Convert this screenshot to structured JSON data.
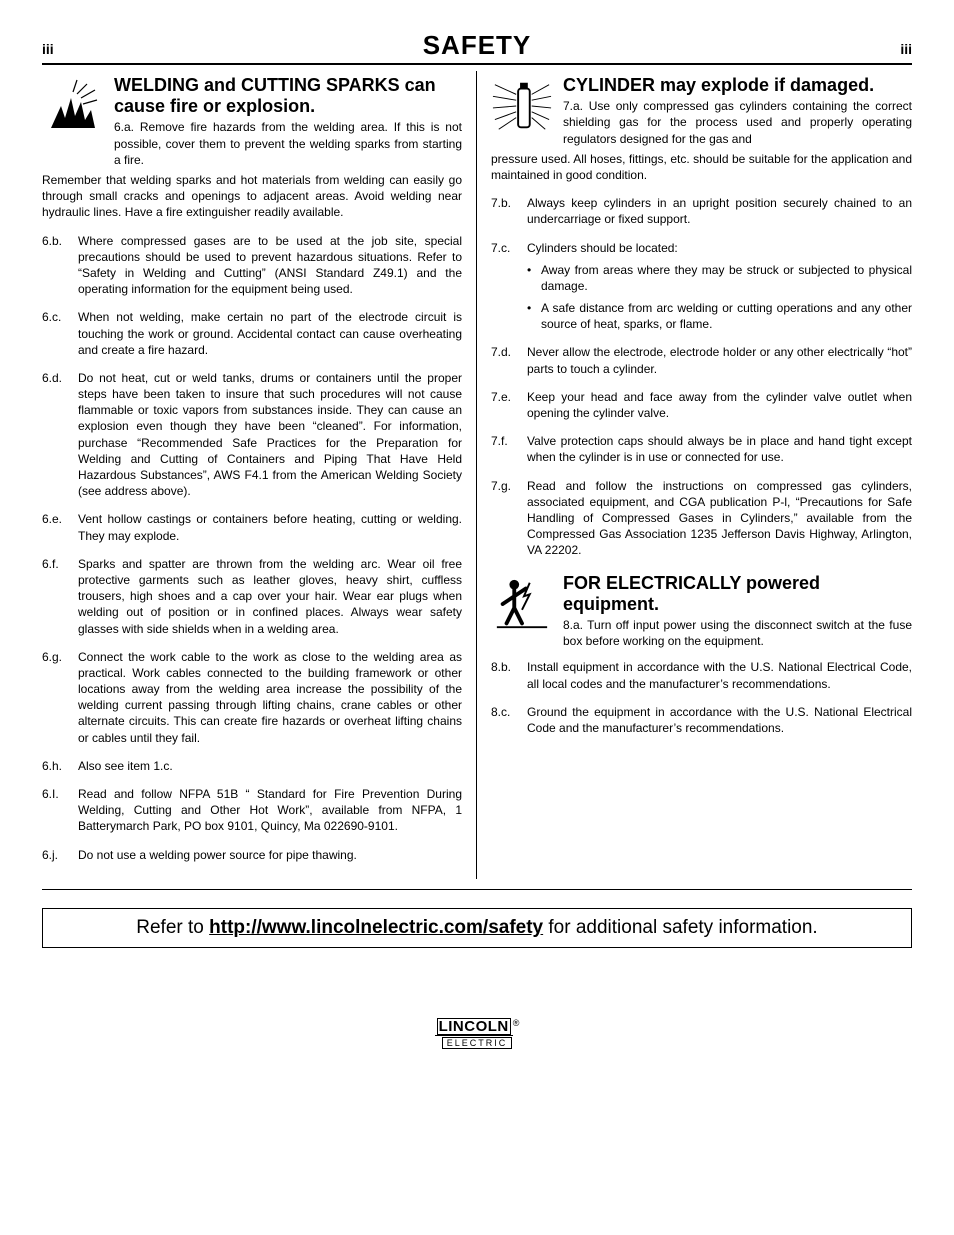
{
  "header": {
    "page_left": "iii",
    "title": "SAFETY",
    "page_right": "iii"
  },
  "left": {
    "title": "WELDING and CUTTING SPARKS can cause fire or explosion.",
    "first_num": "6.a.",
    "first_inline": "Remove fire hazards from the welding area. If this is not possible, cover them to prevent the welding sparks from starting a fire.",
    "first_cont": "Remember that welding sparks and hot materials from welding can easily go through small cracks and openings to adjacent areas. Avoid welding near hydraulic lines. Have a fire extinguisher readily available.",
    "items": [
      {
        "num": "6.b.",
        "txt": "Where compressed gases are to be used at the job site, special precautions should be used to prevent hazardous situations. Refer to “Safety in Welding and Cutting” (ANSI Standard Z49.1) and the operating information for the equipment being used."
      },
      {
        "num": "6.c.",
        "txt": "When not welding, make certain no part of the electrode circuit is touching the work or ground. Accidental contact can cause overheating and create a fire hazard."
      },
      {
        "num": "6.d.",
        "txt": "Do not heat, cut or weld tanks, drums or containers until the proper steps have been taken to insure that such procedures will not cause flammable or toxic vapors from substances inside. They can cause an explosion even though they have been “cleaned”. For information, purchase “Recommended Safe Practices for the Preparation for Welding and Cutting of Containers and Piping That Have Held Hazardous Substances”, AWS F4.1 from the American Welding Society (see address above)."
      },
      {
        "num": "6.e.",
        "txt": "Vent hollow castings or containers before heating, cutting or welding. They may explode."
      },
      {
        "num": "6.f.",
        "txt": "Sparks and spatter are thrown from the welding arc. Wear oil free protective garments such as leather gloves, heavy shirt, cuffless trousers, high shoes and a cap over your hair. Wear ear plugs when welding out of position or in confined places. Always wear safety glasses with side shields when in a welding area."
      },
      {
        "num": "6.g.",
        "txt": "Connect the work cable to the work as close to the welding area as practical. Work cables connected to the building framework or other locations away from the welding area increase the possibility of the welding current passing through lifting chains, crane cables or other alternate circuits. This can create fire hazards or overheat lifting chains or cables until they fail."
      },
      {
        "num": "6.h.",
        "txt": "Also see item 1.c."
      },
      {
        "num": "6.I.",
        "txt": "Read and follow NFPA 51B “ Standard for Fire Prevention During Welding, Cutting and Other Hot Work”, available from NFPA, 1 Batterymarch Park, PO box 9101, Quincy, Ma 022690-9101."
      },
      {
        "num": "6.j.",
        "txt": "Do not use a welding power source for pipe thawing."
      }
    ]
  },
  "rightA": {
    "title": "CYLINDER may explode if damaged.",
    "first_num": "7.a.",
    "first_inline": "Use only compressed gas cylinders containing the correct shielding gas for the process used and properly operating regulators designed for the gas and",
    "first_cont": "pressure used. All hoses, fittings, etc. should be suitable for the application and maintained in good condition.",
    "items": [
      {
        "num": "7.b.",
        "txt": "Always keep cylinders in an upright position securely chained to an undercarriage or fixed support."
      },
      {
        "num": "7.c.",
        "txt": "Cylinders should be located:",
        "subs": [
          "Away from areas where they may be struck or subjected to physical damage.",
          "A safe distance from arc welding or cutting operations and any other source of heat, sparks, or flame."
        ]
      },
      {
        "num": "7.d.",
        "txt": "Never allow the electrode, electrode holder or any other electrically “hot” parts to touch a cylinder."
      },
      {
        "num": "7.e.",
        "txt": "Keep your head and face away from the cylinder valve outlet when opening the cylinder valve."
      },
      {
        "num": "7.f.",
        "txt": "Valve protection caps should always be in place and hand tight except when the cylinder is in use or connected for use."
      },
      {
        "num": "7.g.",
        "txt": "Read and follow the instructions on compressed gas cylinders, associated equipment, and CGA publication P-l, “Precautions for Safe Handling of Compressed Gases in Cylinders,” available from the Compressed Gas Association 1235 Jefferson Davis Highway, Arlington, VA 22202."
      }
    ]
  },
  "rightB": {
    "title": "FOR ELECTRICALLY powered equipment.",
    "first_num": "8.a.",
    "first_inline": "Turn off input power using the disconnect switch at the fuse box before working on the equipment.",
    "items": [
      {
        "num": "8.b.",
        "txt": "Install equipment in accordance with the U.S. National Electrical Code, all local codes and the manufacturer’s recommendations."
      },
      {
        "num": "8.c.",
        "txt": "Ground the equipment in accordance with the U.S. National Electrical Code and the manufacturer’s recommendations."
      }
    ]
  },
  "refer": {
    "pre": "Refer to ",
    "url": "http://www.lincolnelectric.com/safety",
    "post": " for additional safety information."
  },
  "logo": {
    "top": "LINCOLN",
    "bot": "ELECTRIC"
  }
}
